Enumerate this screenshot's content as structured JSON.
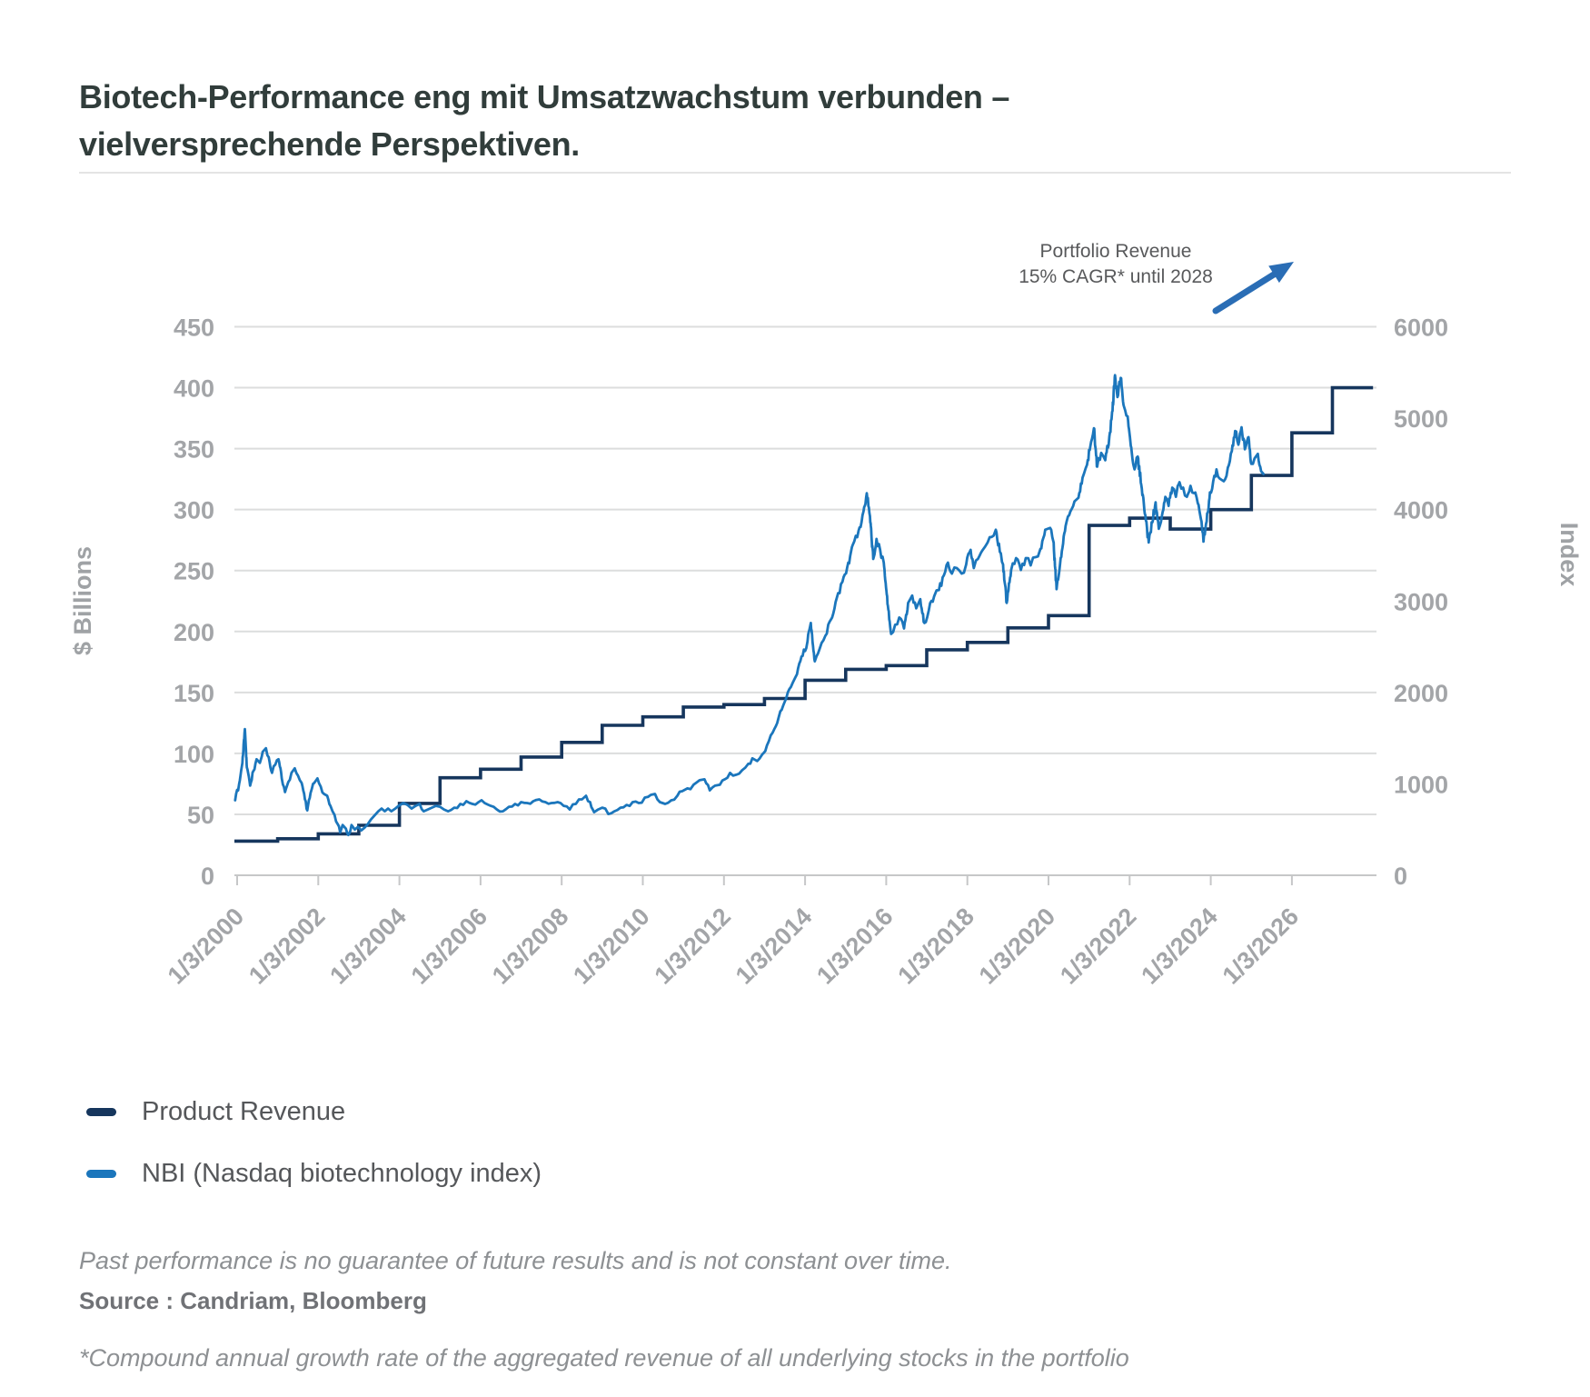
{
  "title": {
    "line1": "Biotech-Performance eng mit Umsatzwachstum verbunden –",
    "line2": "vielversprechende Perspektiven."
  },
  "annotation": {
    "line1": "Portfolio Revenue",
    "line2": "15% CAGR* until 2028",
    "arrow_icon": "up-right-arrow",
    "arrow_color": "#2a6db5"
  },
  "footer": {
    "disclaimer": "Past performance is no guarantee of future results and is not constant over time.",
    "source": "Source : Candriam, Bloomberg",
    "note": "*Compound annual growth rate of the aggregated revenue of all underlying stocks in the portfolio"
  },
  "colors": {
    "product_revenue": "#16365d",
    "nbi": "#1b76bc",
    "gridline": "#dcdddd",
    "axis_line": "#c6c7c8",
    "tick_text": "#a3a5a8",
    "axis_title_text": "#9fa2a5"
  },
  "chart_data": {
    "type": "line",
    "title": "",
    "legend_position": "bottom-left",
    "grid": true,
    "left_axis": {
      "label": "$ Billions",
      "min": 0,
      "max": 450,
      "step": 50,
      "tick_labels": [
        "0",
        "50",
        "100",
        "150",
        "200",
        "250",
        "300",
        "350",
        "400",
        "450"
      ]
    },
    "right_axis": {
      "label": "Index",
      "min": 0,
      "max": 6000,
      "step": 1000,
      "tick_labels": [
        "0",
        "1000",
        "2000",
        "3000",
        "4000",
        "5000",
        "6000"
      ]
    },
    "x_axis": {
      "tick_years": [
        2000,
        2002,
        2004,
        2006,
        2008,
        2010,
        2012,
        2014,
        2016,
        2018,
        2020,
        2022,
        2024,
        2026
      ],
      "tick_labels": [
        "1/3/2000",
        "1/3/2002",
        "1/3/2004",
        "1/3/2006",
        "1/3/2008",
        "1/3/2010",
        "1/3/2012",
        "1/3/2014",
        "1/3/2016",
        "1/3/2018",
        "1/3/2020",
        "1/3/2022",
        "1/3/2024",
        "1/3/2026"
      ],
      "range": [
        2000,
        2028
      ]
    },
    "series": [
      {
        "name": "Product Revenue",
        "axis": "left",
        "unit": "$ Billions",
        "style": "step",
        "color": "#16365d",
        "annual_values": [
          [
            2000,
            28
          ],
          [
            2001,
            30
          ],
          [
            2002,
            34
          ],
          [
            2003,
            41
          ],
          [
            2004,
            59
          ],
          [
            2005,
            80
          ],
          [
            2006,
            87
          ],
          [
            2007,
            97
          ],
          [
            2008,
            109
          ],
          [
            2009,
            123
          ],
          [
            2010,
            130
          ],
          [
            2011,
            138
          ],
          [
            2012,
            140
          ],
          [
            2013,
            145
          ],
          [
            2014,
            160
          ],
          [
            2015,
            169
          ],
          [
            2016,
            172
          ],
          [
            2017,
            185
          ],
          [
            2018,
            191
          ],
          [
            2019,
            203
          ],
          [
            2020,
            213
          ],
          [
            2021,
            287
          ],
          [
            2022,
            293
          ],
          [
            2023,
            284
          ],
          [
            2024,
            300
          ],
          [
            2025,
            328
          ],
          [
            2026,
            363
          ],
          [
            2027,
            400
          ]
        ],
        "extends_to": 2028
      },
      {
        "name": "NBI (Nasdaq biotechnology index)",
        "axis": "right",
        "unit": "Index",
        "style": "line",
        "color": "#1b76bc",
        "points": [
          [
            1999.95,
            820
          ],
          [
            2000.05,
            1000
          ],
          [
            2000.13,
            1230
          ],
          [
            2000.19,
            1600
          ],
          [
            2000.24,
            1180
          ],
          [
            2000.32,
            980
          ],
          [
            2000.4,
            1140
          ],
          [
            2000.48,
            1270
          ],
          [
            2000.56,
            1230
          ],
          [
            2000.63,
            1350
          ],
          [
            2000.71,
            1390
          ],
          [
            2000.78,
            1290
          ],
          [
            2000.86,
            1120
          ],
          [
            2000.94,
            1210
          ],
          [
            2001.02,
            1270
          ],
          [
            2001.1,
            1060
          ],
          [
            2001.18,
            910
          ],
          [
            2001.26,
            1020
          ],
          [
            2001.34,
            1120
          ],
          [
            2001.42,
            1170
          ],
          [
            2001.5,
            1090
          ],
          [
            2001.59,
            1010
          ],
          [
            2001.67,
            830
          ],
          [
            2001.73,
            710
          ],
          [
            2001.81,
            900
          ],
          [
            2001.9,
            1010
          ],
          [
            2001.98,
            1060
          ],
          [
            2002.06,
            970
          ],
          [
            2002.14,
            890
          ],
          [
            2002.22,
            870
          ],
          [
            2002.3,
            760
          ],
          [
            2002.4,
            660
          ],
          [
            2002.48,
            560
          ],
          [
            2002.54,
            470
          ],
          [
            2002.6,
            550
          ],
          [
            2002.68,
            510
          ],
          [
            2002.74,
            440
          ],
          [
            2002.82,
            550
          ],
          [
            2002.9,
            500
          ],
          [
            2002.98,
            530
          ],
          [
            2003.06,
            490
          ],
          [
            2003.14,
            520
          ],
          [
            2003.22,
            560
          ],
          [
            2003.3,
            610
          ],
          [
            2003.4,
            660
          ],
          [
            2003.48,
            700
          ],
          [
            2003.56,
            730
          ],
          [
            2003.64,
            700
          ],
          [
            2003.72,
            730
          ],
          [
            2003.8,
            700
          ],
          [
            2003.9,
            730
          ],
          [
            2003.98,
            760
          ],
          [
            2004.1,
            790
          ],
          [
            2004.2,
            770
          ],
          [
            2004.3,
            730
          ],
          [
            2004.4,
            760
          ],
          [
            2004.5,
            780
          ],
          [
            2004.6,
            700
          ],
          [
            2004.7,
            720
          ],
          [
            2004.8,
            740
          ],
          [
            2004.9,
            760
          ],
          [
            2005.0,
            750
          ],
          [
            2005.1,
            720
          ],
          [
            2005.2,
            700
          ],
          [
            2005.35,
            740
          ],
          [
            2005.5,
            780
          ],
          [
            2005.65,
            810
          ],
          [
            2005.8,
            780
          ],
          [
            2005.95,
            800
          ],
          [
            2006.1,
            790
          ],
          [
            2006.25,
            760
          ],
          [
            2006.4,
            720
          ],
          [
            2006.55,
            700
          ],
          [
            2006.7,
            750
          ],
          [
            2006.85,
            780
          ],
          [
            2007.0,
            800
          ],
          [
            2007.15,
            790
          ],
          [
            2007.3,
            810
          ],
          [
            2007.45,
            830
          ],
          [
            2007.6,
            800
          ],
          [
            2007.75,
            790
          ],
          [
            2007.9,
            800
          ],
          [
            2008.05,
            760
          ],
          [
            2008.2,
            720
          ],
          [
            2008.35,
            780
          ],
          [
            2008.5,
            830
          ],
          [
            2008.6,
            870
          ],
          [
            2008.7,
            800
          ],
          [
            2008.8,
            690
          ],
          [
            2008.9,
            720
          ],
          [
            2009.0,
            740
          ],
          [
            2009.15,
            670
          ],
          [
            2009.3,
            700
          ],
          [
            2009.45,
            740
          ],
          [
            2009.6,
            770
          ],
          [
            2009.75,
            800
          ],
          [
            2009.9,
            790
          ],
          [
            2010.05,
            850
          ],
          [
            2010.2,
            880
          ],
          [
            2010.3,
            890
          ],
          [
            2010.42,
            800
          ],
          [
            2010.55,
            780
          ],
          [
            2010.7,
            820
          ],
          [
            2010.85,
            870
          ],
          [
            2010.97,
            920
          ],
          [
            2011.1,
            950
          ],
          [
            2011.25,
            990
          ],
          [
            2011.4,
            1040
          ],
          [
            2011.52,
            1050
          ],
          [
            2011.65,
            930
          ],
          [
            2011.78,
            980
          ],
          [
            2011.9,
            990
          ],
          [
            2012.02,
            1050
          ],
          [
            2012.15,
            1120
          ],
          [
            2012.3,
            1100
          ],
          [
            2012.45,
            1150
          ],
          [
            2012.6,
            1220
          ],
          [
            2012.7,
            1280
          ],
          [
            2012.82,
            1250
          ],
          [
            2012.94,
            1320
          ],
          [
            2013.06,
            1420
          ],
          [
            2013.2,
            1560
          ],
          [
            2013.35,
            1730
          ],
          [
            2013.5,
            1900
          ],
          [
            2013.65,
            2060
          ],
          [
            2013.8,
            2200
          ],
          [
            2013.94,
            2400
          ],
          [
            2014.06,
            2560
          ],
          [
            2014.14,
            2760
          ],
          [
            2014.24,
            2340
          ],
          [
            2014.36,
            2480
          ],
          [
            2014.5,
            2620
          ],
          [
            2014.64,
            2800
          ],
          [
            2014.78,
            3030
          ],
          [
            2014.92,
            3210
          ],
          [
            2015.04,
            3370
          ],
          [
            2015.18,
            3620
          ],
          [
            2015.32,
            3770
          ],
          [
            2015.44,
            3980
          ],
          [
            2015.52,
            4180
          ],
          [
            2015.6,
            3930
          ],
          [
            2015.68,
            3460
          ],
          [
            2015.76,
            3680
          ],
          [
            2015.85,
            3560
          ],
          [
            2015.94,
            3420
          ],
          [
            2016.04,
            2950
          ],
          [
            2016.12,
            2640
          ],
          [
            2016.22,
            2740
          ],
          [
            2016.32,
            2820
          ],
          [
            2016.44,
            2700
          ],
          [
            2016.54,
            2980
          ],
          [
            2016.64,
            3060
          ],
          [
            2016.74,
            2920
          ],
          [
            2016.84,
            3020
          ],
          [
            2016.94,
            2760
          ],
          [
            2017.05,
            2900
          ],
          [
            2017.18,
            3050
          ],
          [
            2017.3,
            3120
          ],
          [
            2017.42,
            3280
          ],
          [
            2017.52,
            3420
          ],
          [
            2017.62,
            3300
          ],
          [
            2017.74,
            3360
          ],
          [
            2017.86,
            3300
          ],
          [
            2017.97,
            3400
          ],
          [
            2018.08,
            3560
          ],
          [
            2018.16,
            3360
          ],
          [
            2018.26,
            3460
          ],
          [
            2018.38,
            3560
          ],
          [
            2018.5,
            3640
          ],
          [
            2018.6,
            3700
          ],
          [
            2018.7,
            3780
          ],
          [
            2018.8,
            3540
          ],
          [
            2018.88,
            3400
          ],
          [
            2018.97,
            2980
          ],
          [
            2019.08,
            3340
          ],
          [
            2019.2,
            3470
          ],
          [
            2019.32,
            3340
          ],
          [
            2019.44,
            3470
          ],
          [
            2019.56,
            3390
          ],
          [
            2019.68,
            3480
          ],
          [
            2019.8,
            3570
          ],
          [
            2019.92,
            3780
          ],
          [
            2020.04,
            3800
          ],
          [
            2020.12,
            3650
          ],
          [
            2020.2,
            3130
          ],
          [
            2020.3,
            3470
          ],
          [
            2020.42,
            3820
          ],
          [
            2020.54,
            3980
          ],
          [
            2020.64,
            4090
          ],
          [
            2020.74,
            4130
          ],
          [
            2020.84,
            4350
          ],
          [
            2020.95,
            4490
          ],
          [
            2021.05,
            4740
          ],
          [
            2021.12,
            4890
          ],
          [
            2021.2,
            4470
          ],
          [
            2021.3,
            4620
          ],
          [
            2021.4,
            4540
          ],
          [
            2021.5,
            4800
          ],
          [
            2021.58,
            5080
          ],
          [
            2021.64,
            5470
          ],
          [
            2021.7,
            5230
          ],
          [
            2021.78,
            5440
          ],
          [
            2021.86,
            5130
          ],
          [
            2021.95,
            5020
          ],
          [
            2022.04,
            4680
          ],
          [
            2022.12,
            4440
          ],
          [
            2022.2,
            4580
          ],
          [
            2022.3,
            4230
          ],
          [
            2022.4,
            3880
          ],
          [
            2022.47,
            3640
          ],
          [
            2022.56,
            3860
          ],
          [
            2022.64,
            4080
          ],
          [
            2022.72,
            3790
          ],
          [
            2022.8,
            3940
          ],
          [
            2022.88,
            4140
          ],
          [
            2022.96,
            4040
          ],
          [
            2023.05,
            4240
          ],
          [
            2023.14,
            4140
          ],
          [
            2023.23,
            4300
          ],
          [
            2023.32,
            4240
          ],
          [
            2023.41,
            4140
          ],
          [
            2023.5,
            4260
          ],
          [
            2023.59,
            4180
          ],
          [
            2023.68,
            4070
          ],
          [
            2023.76,
            3890
          ],
          [
            2023.82,
            3650
          ],
          [
            2023.9,
            3870
          ],
          [
            2023.98,
            4190
          ],
          [
            2024.06,
            4310
          ],
          [
            2024.14,
            4440
          ],
          [
            2024.22,
            4340
          ],
          [
            2024.32,
            4310
          ],
          [
            2024.42,
            4460
          ],
          [
            2024.52,
            4640
          ],
          [
            2024.6,
            4860
          ],
          [
            2024.68,
            4710
          ],
          [
            2024.76,
            4900
          ],
          [
            2024.84,
            4660
          ],
          [
            2024.92,
            4790
          ],
          [
            2025.0,
            4500
          ],
          [
            2025.08,
            4560
          ],
          [
            2025.16,
            4610
          ],
          [
            2025.24,
            4420
          ],
          [
            2025.3,
            4390
          ]
        ]
      }
    ]
  }
}
